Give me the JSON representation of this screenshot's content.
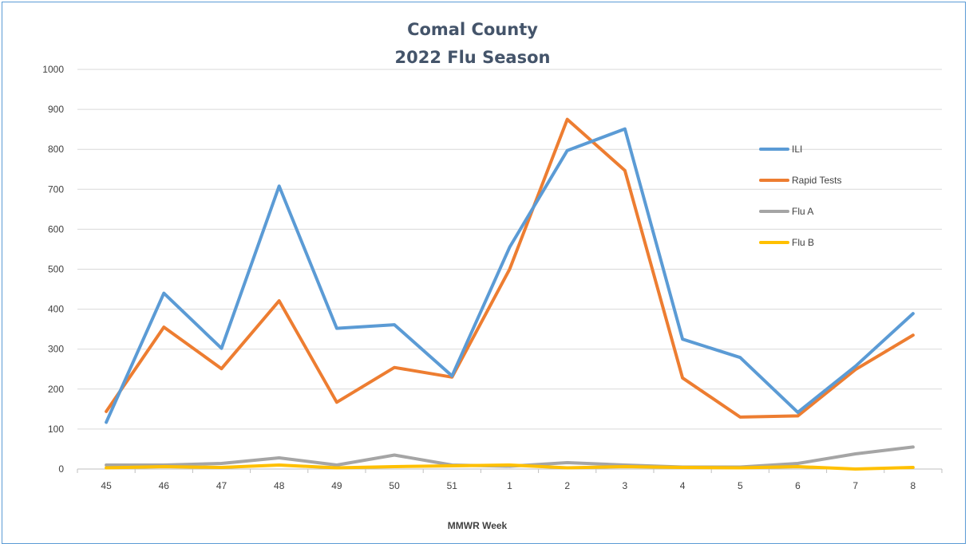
{
  "chart_data": {
    "type": "line",
    "title": "Comal County",
    "subtitle": "2022 Flu Season",
    "xlabel": "MMWR Week",
    "ylabel": "",
    "ylim": [
      0,
      1000
    ],
    "yticks": [
      0,
      100,
      200,
      300,
      400,
      500,
      600,
      700,
      800,
      900,
      1000
    ],
    "grid": true,
    "legend_position": "right",
    "categories": [
      "45",
      "46",
      "47",
      "48",
      "49",
      "50",
      "51",
      "1",
      "2",
      "3",
      "4",
      "5",
      "6",
      "7",
      "8"
    ],
    "series": [
      {
        "name": "ILI",
        "color": "#5b9bd5",
        "values": [
          117,
          440,
          302,
          708,
          352,
          361,
          233,
          555,
          797,
          851,
          325,
          279,
          142,
          257,
          389
        ]
      },
      {
        "name": "Rapid Tests",
        "color": "#ed7d31",
        "values": [
          144,
          355,
          251,
          421,
          167,
          254,
          230,
          500,
          875,
          747,
          228,
          130,
          133,
          249,
          335
        ]
      },
      {
        "name": "Flu A",
        "color": "#a5a5a5",
        "values": [
          10,
          10,
          14,
          28,
          10,
          35,
          10,
          7,
          16,
          10,
          5,
          5,
          14,
          38,
          55
        ]
      },
      {
        "name": "Flu B",
        "color": "#ffc000",
        "values": [
          3,
          6,
          4,
          10,
          3,
          6,
          8,
          10,
          3,
          6,
          4,
          3,
          6,
          0,
          4
        ]
      }
    ]
  }
}
